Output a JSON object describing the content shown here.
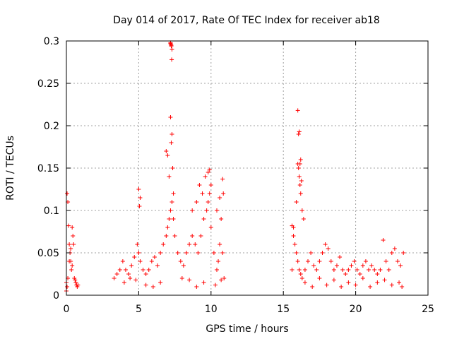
{
  "chart_data": {
    "type": "scatter",
    "title": "Day 014 of 2017, Rate Of TEC Index for receiver ab18",
    "xlabel": "GPS time / hours",
    "ylabel": "ROTI / TECUs",
    "xlim": [
      0,
      25
    ],
    "ylim": [
      0,
      0.3
    ],
    "xticks": [
      0,
      5,
      10,
      15,
      20,
      25
    ],
    "xtick_labels": [
      "0",
      "5",
      "10",
      "15",
      "20",
      "25"
    ],
    "yticks": [
      0,
      0.05,
      0.1,
      0.15,
      0.2,
      0.25,
      0.3
    ],
    "ytick_labels": [
      "0",
      "0.05",
      "0.1",
      "0.15",
      "0.2",
      "0.25",
      "0.3"
    ],
    "grid": true,
    "marker": "+",
    "series": [
      {
        "name": "ab18",
        "color": "#ff0000",
        "x": [
          0.0,
          0.05,
          0.1,
          0.15,
          0.2,
          0.25,
          0.3,
          0.35,
          0.4,
          0.45,
          0.5,
          0.55,
          0.6,
          0.65,
          0.7,
          0.75,
          0.8,
          0.0,
          0.05,
          0.1,
          0.2,
          0.3,
          0.4,
          3.3,
          3.5,
          3.7,
          3.9,
          4.1,
          4.3,
          4.5,
          4.7,
          4.9,
          5.0,
          5.1,
          5.3,
          5.5,
          5.7,
          5.9,
          6.1,
          6.3,
          6.5,
          6.7,
          6.9,
          7.0,
          7.1,
          7.2,
          7.3,
          7.4,
          7.5,
          7.7,
          7.9,
          8.1,
          8.3,
          8.5,
          8.7,
          8.9,
          9.1,
          9.3,
          9.5,
          9.7,
          9.8,
          9.9,
          10.0,
          10.2,
          10.4,
          10.5,
          10.6,
          10.7,
          10.8,
          10.9,
          5.0,
          5.05,
          5.1,
          6.9,
          7.0,
          7.1,
          7.2,
          7.25,
          7.3,
          7.35,
          7.4,
          8.7,
          9.0,
          9.2,
          9.4,
          9.6,
          9.8,
          9.9,
          10.0,
          10.4,
          10.6,
          10.8,
          10.85,
          7.2,
          7.22,
          7.25,
          7.28,
          7.3,
          7.2,
          7.25,
          4.0,
          4.4,
          4.8,
          5.5,
          6.0,
          6.5,
          8.0,
          8.5,
          9.0,
          9.5,
          10.3,
          10.7,
          15.6,
          15.7,
          15.8,
          15.9,
          16.0,
          16.1,
          16.2,
          16.3,
          16.5,
          16.7,
          16.9,
          17.1,
          17.3,
          17.5,
          17.7,
          17.9,
          18.1,
          18.3,
          18.5,
          18.7,
          18.9,
          19.1,
          19.3,
          19.5,
          19.7,
          19.9,
          20.1,
          20.3,
          20.5,
          20.7,
          20.9,
          21.1,
          21.3,
          21.5,
          21.7,
          21.9,
          22.1,
          22.3,
          22.5,
          22.7,
          22.9,
          23.1,
          23.3,
          15.6,
          15.7,
          15.9,
          16.0,
          16.05,
          16.1,
          16.15,
          16.2,
          16.25,
          16.3,
          16.4,
          16.0,
          16.05,
          16.1,
          16.15,
          16.2,
          16.5,
          17.0,
          17.5,
          18.0,
          18.5,
          19.0,
          19.5,
          20.0,
          20.5,
          21.0,
          21.5,
          22.0,
          22.5,
          23.0,
          23.2
        ],
        "y": [
          0.015,
          0.12,
          0.11,
          0.082,
          0.06,
          0.05,
          0.04,
          0.03,
          0.08,
          0.07,
          0.06,
          0.02,
          0.018,
          0.015,
          0.012,
          0.01,
          0.012,
          0.005,
          0.01,
          0.02,
          0.04,
          0.055,
          0.035,
          0.02,
          0.025,
          0.03,
          0.04,
          0.03,
          0.025,
          0.035,
          0.045,
          0.06,
          0.05,
          0.04,
          0.03,
          0.025,
          0.03,
          0.04,
          0.045,
          0.035,
          0.05,
          0.06,
          0.07,
          0.08,
          0.09,
          0.1,
          0.11,
          0.09,
          0.07,
          0.05,
          0.04,
          0.035,
          0.05,
          0.06,
          0.07,
          0.06,
          0.05,
          0.07,
          0.09,
          0.1,
          0.11,
          0.12,
          0.08,
          0.05,
          0.03,
          0.04,
          0.06,
          0.09,
          0.05,
          0.02,
          0.125,
          0.105,
          0.115,
          0.17,
          0.165,
          0.14,
          0.21,
          0.18,
          0.19,
          0.15,
          0.12,
          0.1,
          0.11,
          0.13,
          0.12,
          0.14,
          0.145,
          0.148,
          0.13,
          0.1,
          0.115,
          0.137,
          0.12,
          0.298,
          0.296,
          0.294,
          0.278,
          0.29,
          0.297,
          0.295,
          0.015,
          0.02,
          0.018,
          0.012,
          0.01,
          0.015,
          0.02,
          0.018,
          0.01,
          0.015,
          0.012,
          0.018,
          0.03,
          0.08,
          0.06,
          0.05,
          0.04,
          0.03,
          0.025,
          0.02,
          0.03,
          0.04,
          0.05,
          0.035,
          0.03,
          0.04,
          0.05,
          0.06,
          0.055,
          0.04,
          0.03,
          0.035,
          0.045,
          0.03,
          0.025,
          0.03,
          0.035,
          0.04,
          0.03,
          0.025,
          0.035,
          0.04,
          0.03,
          0.035,
          0.03,
          0.025,
          0.03,
          0.065,
          0.04,
          0.03,
          0.05,
          0.055,
          0.04,
          0.035,
          0.05,
          0.082,
          0.07,
          0.11,
          0.155,
          0.15,
          0.14,
          0.13,
          0.12,
          0.135,
          0.1,
          0.09,
          0.218,
          0.19,
          0.193,
          0.155,
          0.16,
          0.015,
          0.01,
          0.02,
          0.012,
          0.018,
          0.01,
          0.015,
          0.012,
          0.02,
          0.01,
          0.015,
          0.018,
          0.012,
          0.015,
          0.01
        ]
      }
    ]
  }
}
